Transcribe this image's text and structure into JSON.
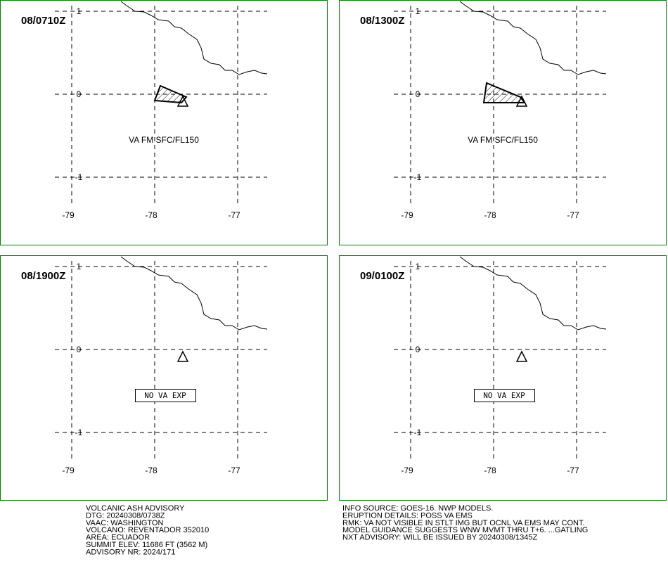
{
  "panels": [
    {
      "time": "08/0710Z",
      "lat_labels": [
        "1",
        "0",
        "-1"
      ],
      "lon_labels": [
        "-79",
        "-78",
        "-77"
      ],
      "annotation": "VA FM SFC/FL150"
    },
    {
      "time": "08/1300Z",
      "lat_labels": [
        "1",
        "0",
        "-1"
      ],
      "lon_labels": [
        "-79",
        "-78",
        "-77"
      ],
      "annotation": "VA FM SFC/FL150"
    },
    {
      "time": "08/1900Z",
      "lat_labels": [
        "1",
        "0",
        "-1"
      ],
      "lon_labels": [
        "-79",
        "-78",
        "-77"
      ],
      "annotation": "NO VA EXP"
    },
    {
      "time": "09/0100Z",
      "lat_labels": [
        "1",
        "0",
        "-1"
      ],
      "lon_labels": [
        "-79",
        "-78",
        "-77"
      ],
      "annotation": "NO VA EXP"
    }
  ],
  "footer": {
    "left": [
      "VOLCANIC ASH ADVISORY",
      "DTG: 20240308/0738Z",
      "VAAC: WASHINGTON",
      "VOLCANO: REVENTADOR 352010",
      "AREA: ECUADOR",
      "SUMMIT ELEV: 11686 FT (3562 M)",
      "ADVISORY NR: 2024/171"
    ],
    "right": [
      "INFO SOURCE: GOES-16. NWP MODELS.",
      "ERUPTION DETAILS: POSS VA EMS",
      "RMK: VA NOT VISIBLE IN STLT IMG BUT OCNL VA EMS MAY CONT.",
      "MODEL GUIDANCE SUGGESTS WNW MVMT THRU T+6. ...GATLING",
      "NXT ADVISORY: WILL BE ISSUED BY 20240308/1345Z"
    ]
  }
}
